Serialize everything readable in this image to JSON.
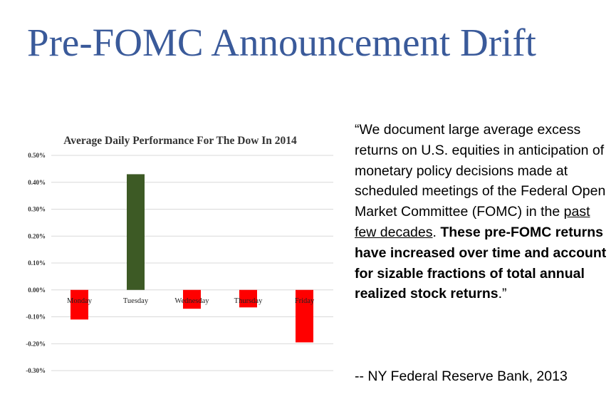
{
  "slide": {
    "title": "Pre-FOMC Announcement Drift"
  },
  "quote": {
    "part1": "“We document large average excess returns on U.S. equities in anticipation of monetary policy decisions made at scheduled meetings of the Federal Open Market Committee (FOMC) in the ",
    "underlined": "past few decades",
    "part2": ". ",
    "bold": "These pre-FOMC returns have increased over time and account for sizable fractions of total annual realized stock returns",
    "end": ".”",
    "attribution": "-- NY Federal Reserve Bank, 2013"
  },
  "chart_data": {
    "type": "bar",
    "title": "Average Daily Performance For The Dow In 2014",
    "xlabel": "",
    "ylabel": "",
    "categories": [
      "Monday",
      "Tuesday",
      "Wednesday",
      "Thursday",
      "Friday"
    ],
    "values": [
      -0.11,
      0.43,
      -0.07,
      -0.065,
      -0.195
    ],
    "ylim": [
      -0.3,
      0.5
    ],
    "yticks": [
      "0.50%",
      "0.40%",
      "0.30%",
      "0.20%",
      "0.10%",
      "0.00%",
      "-0.10%",
      "-0.20%",
      "-0.30%"
    ],
    "ytick_values": [
      0.5,
      0.4,
      0.3,
      0.2,
      0.1,
      0.0,
      -0.1,
      -0.2,
      -0.3
    ],
    "grid": true,
    "colors": {
      "positive": "#3d5a25",
      "negative": "#ff0000",
      "grid": "#d9d9d9"
    }
  }
}
